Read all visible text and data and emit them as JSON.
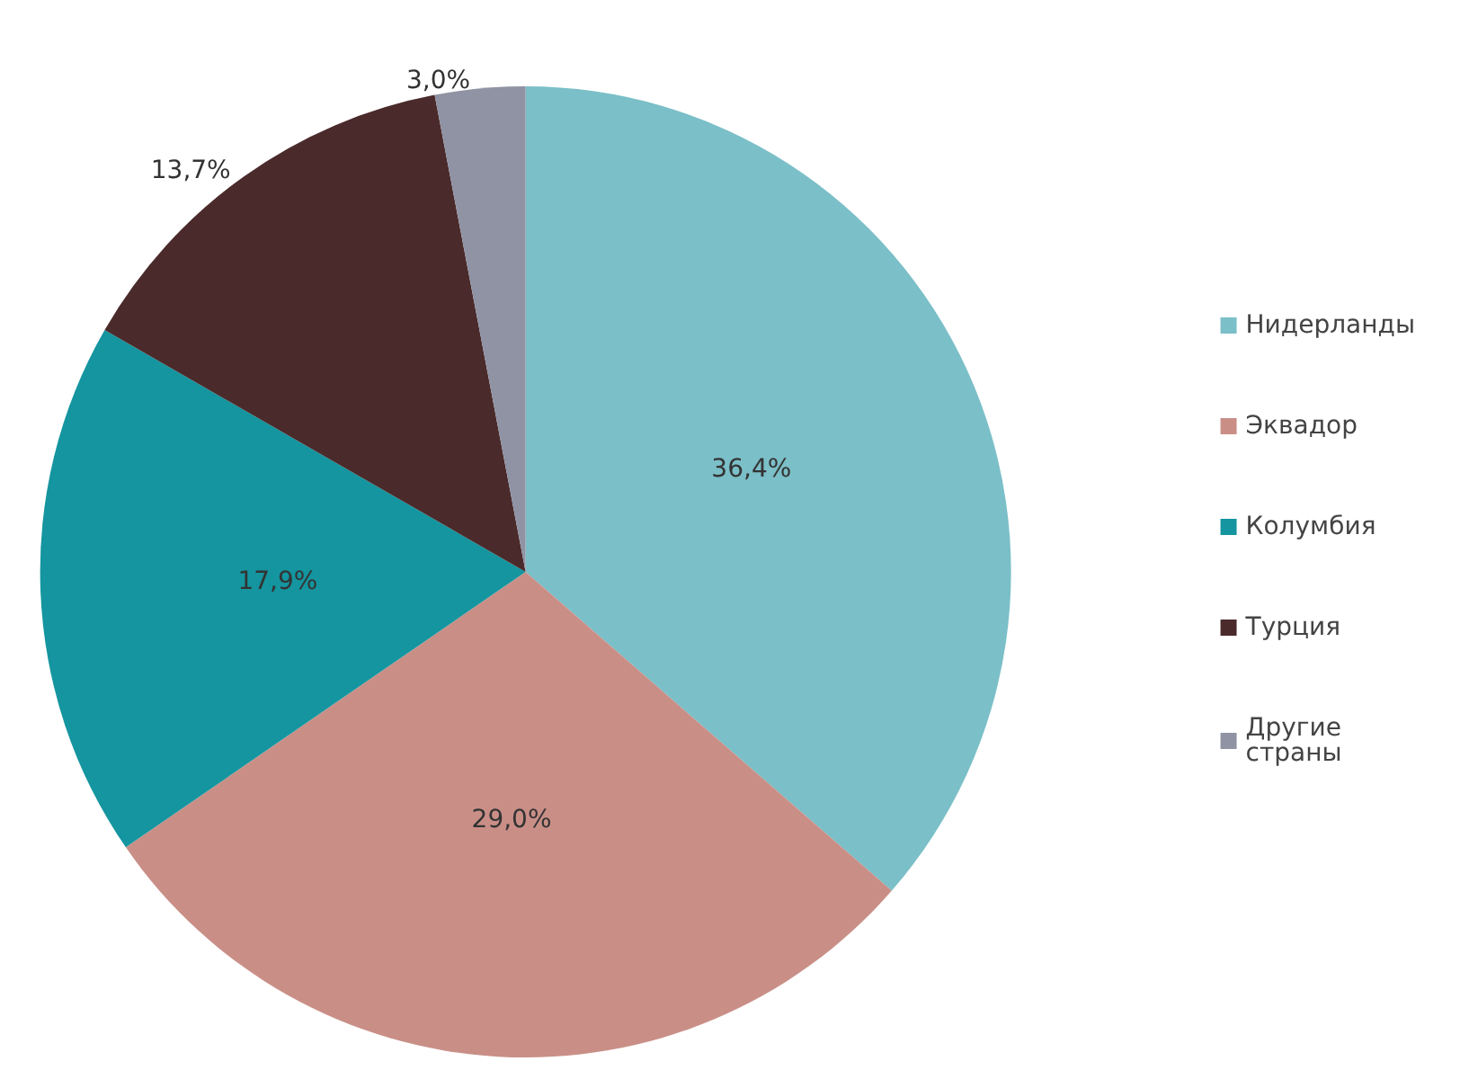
{
  "chart_data": {
    "type": "pie",
    "categories": [
      "Нидерланды",
      "Эквадор",
      "Колумбия",
      "Турция",
      "Другие страны"
    ],
    "values": [
      36.4,
      29.0,
      17.9,
      13.7,
      3.0
    ],
    "value_labels": [
      "36,4%",
      "29,0%",
      "17,9%",
      "13,7%",
      "3,0%"
    ],
    "colors": [
      "#7bbfc8",
      "#c98f87",
      "#14959f",
      "#4a2a2b",
      "#8f93a3"
    ],
    "legend": "right"
  }
}
